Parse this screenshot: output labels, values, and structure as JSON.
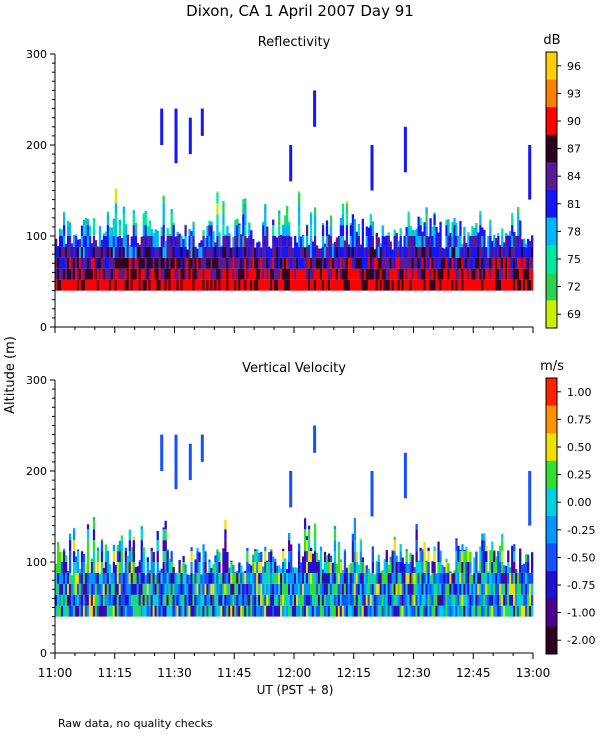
{
  "title": "Dixon, CA   1 April 2007   Day  91",
  "footnote": "Raw data, no quality checks",
  "y_axis_label": "Altitude (m)",
  "x_axis_label": "UT  (PST + 8)",
  "x_ticks": [
    "11:00",
    "11:15",
    "11:30",
    "11:45",
    "12:00",
    "12:15",
    "12:30",
    "12:45",
    "13:00"
  ],
  "y_ticks": [
    "0",
    "100",
    "200",
    "300"
  ],
  "chart_data": [
    {
      "type": "heatmap",
      "title": "Reflectivity",
      "colorbar_unit": "dB",
      "colorbar_labels": [
        "96",
        "93",
        "90",
        "87",
        "84",
        "81",
        "78",
        "75",
        "72",
        "69"
      ],
      "colorbar_colors": [
        "#ffd000",
        "#ff8000",
        "#ff0000",
        "#300020",
        "#5a1a96",
        "#1414ff",
        "#00b4ff",
        "#00e8a0",
        "#30d050",
        "#c8f000"
      ],
      "xlabel": "UT  (PST + 8)",
      "ylabel": "Altitude (m)",
      "x_range": [
        "11:00",
        "13:00"
      ],
      "ylim": [
        0,
        300
      ],
      "data_base_altitude_m": 40,
      "typical_top_altitude_m": 120,
      "max_echo_altitude_m": 260
    },
    {
      "type": "heatmap",
      "title": "Vertical Velocity",
      "colorbar_unit": "m/s",
      "colorbar_labels": [
        "1.00",
        "0.75",
        "0.50",
        "0.25",
        "0.00",
        "-0.25",
        "-0.50",
        "-0.75",
        "-1.00",
        "-2.00"
      ],
      "colorbar_colors": [
        "#ff2000",
        "#ff9000",
        "#f0e000",
        "#30e030",
        "#00d0e0",
        "#0096ff",
        "#1450ff",
        "#2010d0",
        "#500090",
        "#300020"
      ],
      "xlabel": "UT  (PST + 8)",
      "ylabel": "Altitude (m)",
      "x_range": [
        "11:00",
        "13:00"
      ],
      "ylim": [
        0,
        300
      ],
      "data_base_altitude_m": 40,
      "typical_top_altitude_m": 120,
      "max_echo_altitude_m": 250
    }
  ]
}
